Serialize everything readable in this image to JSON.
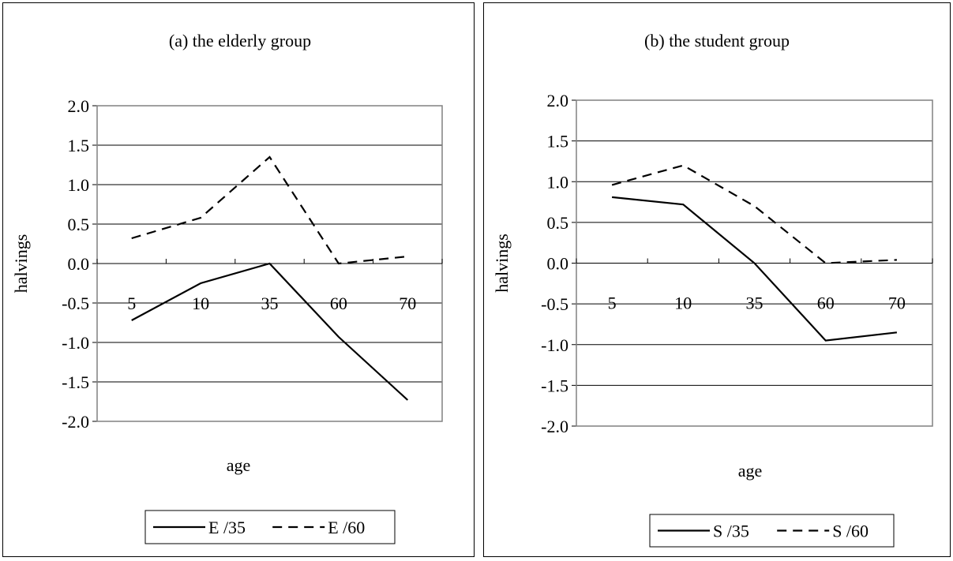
{
  "chart_data": [
    {
      "type": "line",
      "title": "(a) the elderly group",
      "xlabel": "age",
      "ylabel": "halvings",
      "categories": [
        "5",
        "10",
        "35",
        "60",
        "70"
      ],
      "ylim": [
        -2.0,
        2.0
      ],
      "yticks": [
        "2.0",
        "1.5",
        "1.0",
        "0.5",
        "0.0",
        "-0.5",
        "-1.0",
        "-1.5",
        "-2.0"
      ],
      "grid": true,
      "legend_position": "bottom",
      "series": [
        {
          "name": "E /35",
          "style": "solid",
          "values": [
            -0.72,
            -0.25,
            0.0,
            -0.93,
            -1.73
          ]
        },
        {
          "name": "E /60",
          "style": "dashed",
          "values": [
            0.32,
            0.58,
            1.35,
            0.0,
            0.09
          ]
        }
      ]
    },
    {
      "type": "line",
      "title": "(b) the student group",
      "xlabel": "age",
      "ylabel": "halvings",
      "categories": [
        "5",
        "10",
        "35",
        "60",
        "70"
      ],
      "ylim": [
        -2.0,
        2.0
      ],
      "yticks": [
        "2.0",
        "1.5",
        "1.0",
        "0.5",
        "0.0",
        "-0.5",
        "-1.0",
        "-1.5",
        "-2.0"
      ],
      "grid": true,
      "legend_position": "bottom",
      "series": [
        {
          "name": "S /35",
          "style": "solid",
          "values": [
            0.81,
            0.72,
            0.0,
            -0.95,
            -0.85
          ]
        },
        {
          "name": "S /60",
          "style": "dashed",
          "values": [
            0.96,
            1.2,
            0.7,
            0.0,
            0.04
          ]
        }
      ]
    }
  ]
}
